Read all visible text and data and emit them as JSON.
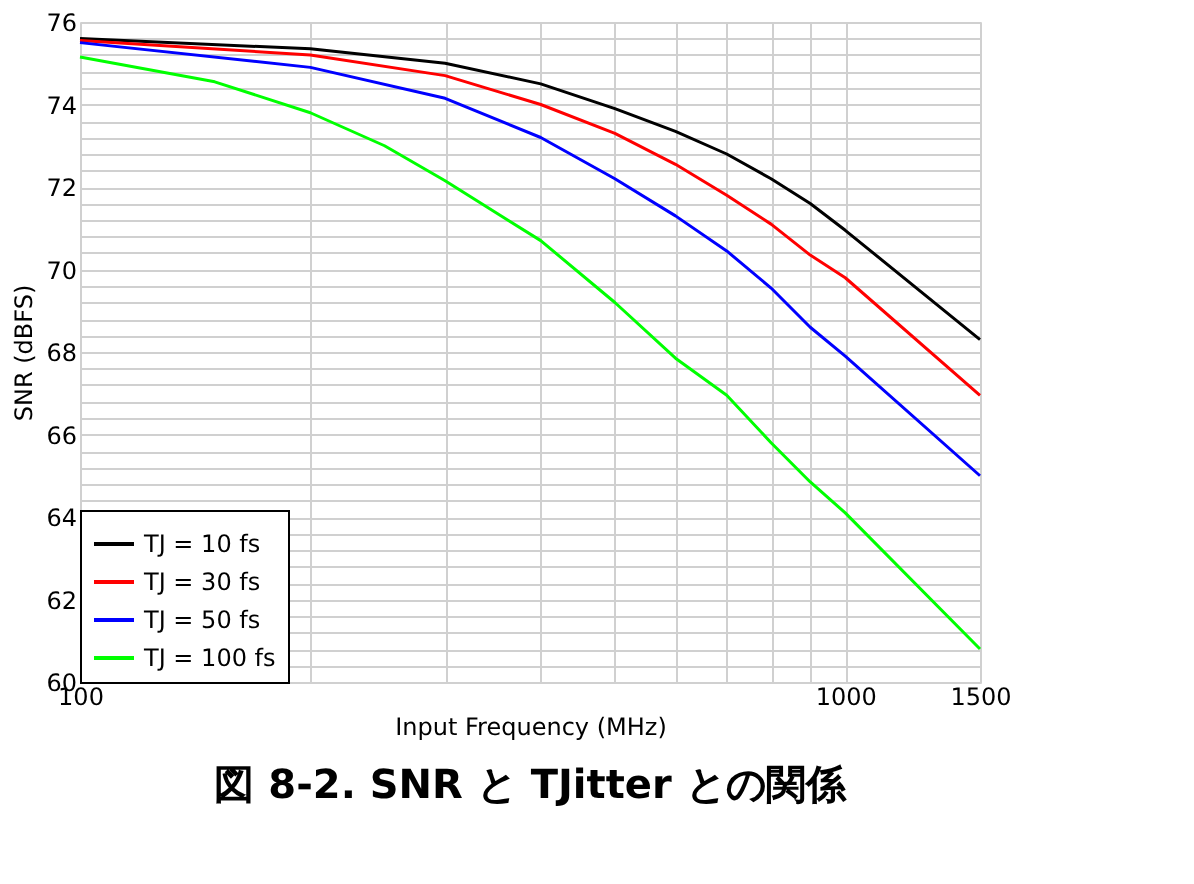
{
  "chart_data": {
    "type": "line",
    "title": "図 8-2. SNR と TJitter との関係",
    "xlabel": "Input Frequency (MHz)",
    "ylabel": "SNR (dBFS)",
    "log": "x",
    "grid": true,
    "legend": "bottom left",
    "line_style": "solid",
    "marker": "none",
    "xlim": [
      100,
      1500
    ],
    "xticks": [
      100,
      {
        "value": 200,
        "label": null
      },
      {
        "value": 300,
        "label": null
      },
      {
        "value": 400,
        "label": null
      },
      {
        "value": 500,
        "label": null
      },
      {
        "value": 600,
        "label": null
      },
      {
        "value": 700,
        "label": null
      },
      {
        "value": 800,
        "label": null
      },
      {
        "value": 900,
        "label": null
      },
      1000,
      1500
    ],
    "ylim": [
      60,
      76
    ],
    "yticks": [
      60,
      {
        "value": 60.4,
        "label": null
      },
      {
        "value": 60.8,
        "label": null
      },
      {
        "value": 61.2,
        "label": null
      },
      {
        "value": 61.6,
        "label": null
      },
      62,
      {
        "value": 62.4,
        "label": null
      },
      {
        "value": 62.8,
        "label": null
      },
      {
        "value": 63.2,
        "label": null
      },
      {
        "value": 63.6,
        "label": null
      },
      64,
      {
        "value": 64.4,
        "label": null
      },
      {
        "value": 64.8,
        "label": null
      },
      {
        "value": 65.2,
        "label": null
      },
      {
        "value": 65.6,
        "label": null
      },
      66,
      {
        "value": 66.4,
        "label": null
      },
      {
        "value": 66.8,
        "label": null
      },
      {
        "value": 67.2,
        "label": null
      },
      {
        "value": 67.6,
        "label": null
      },
      68,
      {
        "value": 68.4,
        "label": null
      },
      {
        "value": 68.8,
        "label": null
      },
      {
        "value": 69.2,
        "label": null
      },
      {
        "value": 69.6,
        "label": null
      },
      70,
      {
        "value": 70.4,
        "label": null
      },
      {
        "value": 70.8,
        "label": null
      },
      {
        "value": 71.2,
        "label": null
      },
      {
        "value": 71.6,
        "label": null
      },
      72,
      {
        "value": 72.4,
        "label": null
      },
      {
        "value": 72.8,
        "label": null
      },
      {
        "value": 73.2,
        "label": null
      },
      {
        "value": 73.6,
        "label": null
      },
      74,
      {
        "value": 74.4,
        "label": null
      },
      {
        "value": 74.8,
        "label": null
      },
      {
        "value": 75.2,
        "label": null
      },
      {
        "value": 75.6,
        "label": null
      },
      76
    ],
    "x": [
      100,
      200,
      300,
      400,
      500,
      600,
      700,
      800,
      900,
      1000,
      1500
    ],
    "series": [
      {
        "name": "TJ = 10 fs",
        "color": "#000000",
        "values": [
          75.6,
          75.35,
          75.0,
          74.5,
          73.9,
          73.35,
          72.8,
          72.2,
          71.6,
          70.95,
          68.3
        ]
      },
      {
        "name": "TJ = 30 fs",
        "color": "#ff0000",
        "values": [
          75.55,
          75.2,
          74.7,
          74.0,
          73.3,
          72.55,
          71.8,
          71.1,
          70.35,
          69.8,
          66.95
        ]
      },
      {
        "name": "TJ = 50 fs",
        "color": "#0000ff",
        "values": [
          75.5,
          74.9,
          74.15,
          73.2,
          72.2,
          71.3,
          70.45,
          69.55,
          68.6,
          67.9,
          65.0
        ]
      },
      {
        "name": "TJ = 100 fs",
        "color": "#00ff00",
        "x": [
          100,
          150,
          200,
          250,
          300,
          400,
          500,
          600,
          700,
          800,
          900,
          1000,
          1500
        ],
        "values": [
          75.15,
          74.55,
          73.8,
          73.0,
          72.15,
          70.7,
          69.2,
          67.85,
          66.95,
          65.8,
          64.85,
          64.1,
          60.8
        ]
      }
    ]
  }
}
